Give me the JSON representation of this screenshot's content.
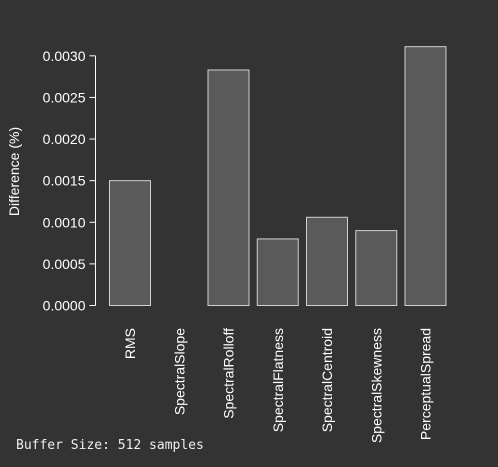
{
  "footnote": "Buffer Size: 512 samples",
  "colors": {
    "background": "#333333",
    "bar_fill": "#5a5a5a",
    "bar_stroke": "#d0d0d0",
    "text": "#ffffff",
    "axis": "#ffffff"
  },
  "chart_data": {
    "type": "bar",
    "categories": [
      "RMS",
      "SpectralSlope",
      "SpectralRolloff",
      "SpectralFlatness",
      "SpectralCentroid",
      "SpectralSkewness",
      "PerceptualSpread"
    ],
    "values": [
      0.0015,
      0.0,
      0.00283,
      0.0008,
      0.00106,
      0.0009,
      0.00311
    ],
    "title": "",
    "xlabel": "",
    "ylabel": "Difference (%)",
    "ylim": [
      0,
      0.0031
    ],
    "yticks": [
      0.0,
      0.0005,
      0.001,
      0.0015,
      0.002,
      0.0025,
      0.003
    ],
    "ytick_labels": [
      "0.0000",
      "0.0005",
      "0.0010",
      "0.0015",
      "0.0020",
      "0.0025",
      "0.0030"
    ],
    "grid": false,
    "legend": "none"
  }
}
